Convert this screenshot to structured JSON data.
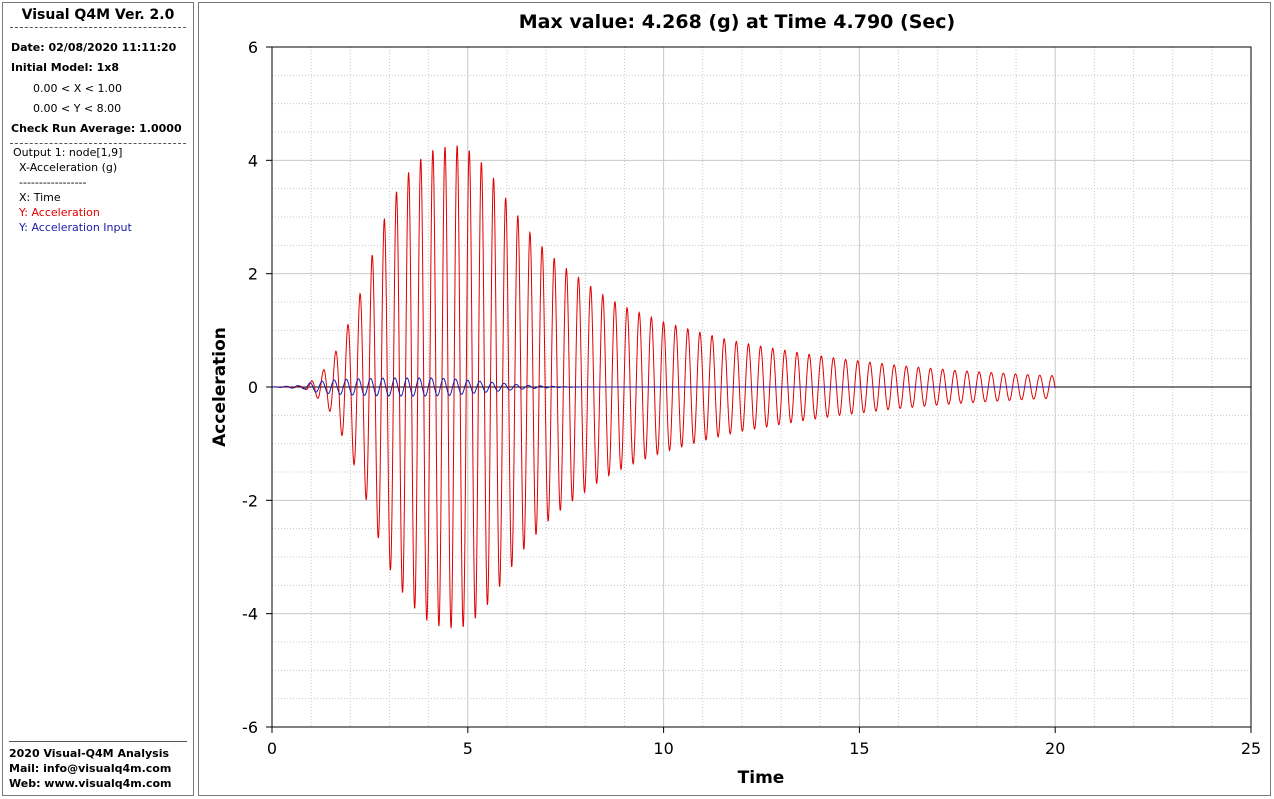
{
  "sidebar": {
    "title": "Visual Q4M Ver. 2.0",
    "date": "Date: 02/08/2020 11:11:20",
    "initial_model": "Initial Model: 1x8",
    "x_range": "0.00 < X < 1.00",
    "y_range": "0.00 < Y < 8.00",
    "check_run": "Check Run Average: 1.0000",
    "output": "Output 1: node[1,9]",
    "quantity": "X-Acceleration (g)",
    "separator": "-----------------",
    "x_label": "X: Time",
    "y_label_1": "Y: Acceleration",
    "y_label_2": "Y: Acceleration Input",
    "footer_1": "2020 Visual-Q4M Analysis",
    "footer_2": "Mail: info@visualq4m.com",
    "footer_3": "Web: www.visualq4m.com"
  },
  "colors": {
    "series_response": "#e00000",
    "series_input": "#1a1aa8",
    "grid": "#c8c8c8"
  },
  "chart_data": {
    "type": "line",
    "title": "Max value: 4.268 (g) at Time 4.790 (Sec)",
    "xlabel": "Time",
    "ylabel": "Acceleration",
    "xlim": [
      0,
      25
    ],
    "ylim": [
      -6,
      6
    ],
    "xticks": [
      "0",
      "5",
      "10",
      "15",
      "20",
      "25"
    ],
    "yticks": [
      "-6",
      "-4",
      "-2",
      "0",
      "2",
      "4",
      "6"
    ],
    "grid": true,
    "minor_grid": true,
    "legend": "none",
    "series": [
      {
        "name": "Acceleration",
        "color": "#e00000",
        "x": [
          0,
          0.8,
          1.0,
          1.25,
          1.5,
          1.75,
          2.0,
          2.25,
          2.5,
          2.75,
          3.0,
          3.25,
          3.5,
          3.75,
          4.0,
          4.25,
          4.5,
          4.79,
          5.0,
          5.25,
          5.5,
          5.75,
          6.0,
          6.25,
          6.5,
          6.75,
          7.0,
          7.5,
          8.0,
          8.5,
          9.0,
          9.5,
          10.0,
          10.5,
          11.0,
          11.5,
          12.0,
          12.5,
          13.0,
          13.5,
          14.0,
          14.5,
          15.0,
          15.5,
          16.0,
          16.5,
          17.0,
          17.5,
          18.0,
          18.5,
          19.0,
          19.5,
          20.0
        ],
        "amplitude": [
          0,
          0.02,
          0.1,
          0.25,
          0.45,
          0.8,
          1.2,
          1.65,
          2.2,
          2.75,
          3.2,
          3.55,
          3.8,
          4.0,
          4.15,
          4.22,
          4.25,
          4.268,
          4.2,
          4.05,
          3.85,
          3.6,
          3.3,
          3.05,
          2.8,
          2.6,
          2.4,
          2.1,
          1.85,
          1.6,
          1.42,
          1.28,
          1.15,
          1.05,
          0.95,
          0.86,
          0.78,
          0.72,
          0.66,
          0.6,
          0.55,
          0.5,
          0.46,
          0.42,
          0.38,
          0.35,
          0.32,
          0.29,
          0.27,
          0.25,
          0.23,
          0.21,
          0.2
        ],
        "period_sec": 0.31
      },
      {
        "name": "Acceleration Input",
        "color": "#1a1aa8",
        "x": [
          0,
          0.8,
          1.0,
          1.5,
          2.0,
          2.5,
          3.0,
          3.5,
          4.0,
          4.5,
          5.0,
          5.5,
          6.0,
          6.5,
          7.0,
          7.5,
          8.0,
          20.0
        ],
        "amplitude": [
          0,
          0.03,
          0.08,
          0.12,
          0.14,
          0.15,
          0.16,
          0.16,
          0.16,
          0.15,
          0.12,
          0.09,
          0.06,
          0.03,
          0.015,
          0.005,
          0.0,
          0.0
        ],
        "period_sec": 0.31
      }
    ]
  }
}
